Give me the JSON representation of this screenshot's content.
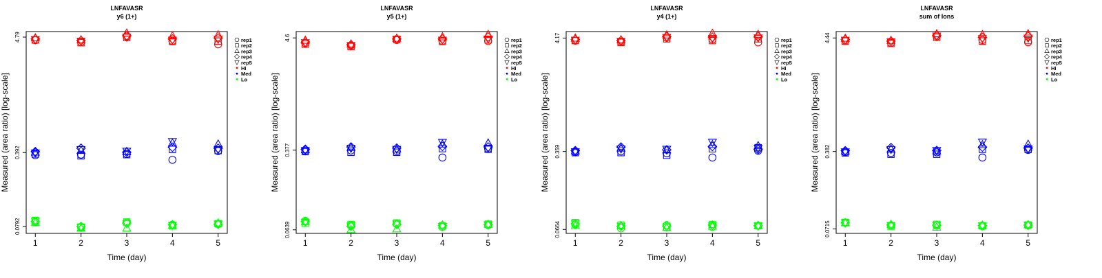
{
  "colors": {
    "Hi": "#ff0000",
    "Med": "#0000ff",
    "Lo": "#00ff00",
    "axis": "#000000"
  },
  "legend": {
    "reps": [
      {
        "label": "rep1",
        "shape": "circle"
      },
      {
        "label": "rep2",
        "shape": "square"
      },
      {
        "label": "rep3",
        "shape": "triangle-up"
      },
      {
        "label": "rep4",
        "shape": "diamond"
      },
      {
        "label": "rep5",
        "shape": "triangle-down"
      }
    ],
    "levels": [
      {
        "label": "Hi",
        "color": "#ff0000"
      },
      {
        "label": "Med",
        "color": "#0000ff"
      },
      {
        "label": "Lo",
        "color": "#00ff00"
      }
    ],
    "placement": "right"
  },
  "chart_data": [
    {
      "type": "scatter",
      "title": "LNFAVASR",
      "subtitle": "y6 (1+)",
      "xlabel": "Time (day)",
      "ylabel": "Measured (area ratio) [log-scale]",
      "log_y": true,
      "xlim": [
        0.8,
        5.2
      ],
      "ylim": [
        0.068,
        5.4
      ],
      "x_ticks": [
        "1",
        "2",
        "3",
        "4",
        "5"
      ],
      "y_ticks": [
        0.0792,
        0.392,
        4.79
      ],
      "grid": false,
      "series": [
        {
          "name": "Hi",
          "color": "#ff0000",
          "points": {
            "rep1": [
              4.48,
              4.3,
              4.85,
              4.4,
              4.1
            ],
            "rep2": [
              4.5,
              4.25,
              4.75,
              4.35,
              4.4
            ],
            "rep3": [
              4.7,
              4.5,
              5.2,
              4.9,
              5.0
            ],
            "rep4": [
              4.6,
              4.45,
              4.95,
              4.6,
              4.7
            ],
            "rep5": [
              4.55,
              4.4,
              4.8,
              4.5,
              4.6
            ]
          }
        },
        {
          "name": "Med",
          "color": "#0000ff",
          "points": {
            "rep1": [
              0.37,
              0.375,
              0.38,
              0.335,
              0.405
            ],
            "rep2": [
              0.38,
              0.365,
              0.375,
              0.42,
              0.41
            ],
            "rep3": [
              0.395,
              0.41,
              0.4,
              0.48,
              0.47
            ],
            "rep4": [
              0.4,
              0.43,
              0.395,
              0.44,
              0.43
            ],
            "rep5": [
              0.39,
              0.42,
              0.405,
              0.5,
              0.42
            ]
          }
        },
        {
          "name": "Lo",
          "color": "#00ff00",
          "points": {
            "rep1": [
              0.087,
              0.0785,
              0.086,
              0.082,
              0.083
            ],
            "rep2": [
              0.09,
              0.078,
              0.087,
              0.08,
              0.084
            ],
            "rep3": [
              0.086,
              0.076,
              0.076,
              0.081,
              0.085
            ],
            "rep4": [
              0.088,
              0.079,
              0.085,
              0.082,
              0.083
            ],
            "rep5": [
              0.089,
              0.078,
              0.084,
              0.0815,
              0.0835
            ]
          }
        }
      ]
    },
    {
      "type": "scatter",
      "title": "LNFAVASR",
      "subtitle": "y5 (1+)",
      "xlabel": "Time (day)",
      "ylabel": "Measured (area ratio) [log-scale]",
      "log_y": true,
      "xlim": [
        0.8,
        5.2
      ],
      "ylim": [
        0.059,
        5.3
      ],
      "x_ticks": [
        "1",
        "2",
        "3",
        "4",
        "5"
      ],
      "y_ticks": [
        0.0639,
        0.377,
        4.6
      ],
      "grid": false,
      "series": [
        {
          "name": "Hi",
          "color": "#ff0000",
          "points": {
            "rep1": [
              4.1,
              3.9,
              4.4,
              4.3,
              4.3
            ],
            "rep2": [
              4.0,
              3.8,
              4.45,
              4.25,
              4.4
            ],
            "rep3": [
              4.35,
              4.0,
              4.55,
              4.7,
              4.95
            ],
            "rep4": [
              4.2,
              3.95,
              4.5,
              4.5,
              4.7
            ],
            "rep5": [
              4.15,
              3.9,
              4.45,
              4.4,
              4.5
            ]
          }
        },
        {
          "name": "Med",
          "color": "#0000ff",
          "points": {
            "rep1": [
              0.37,
              0.375,
              0.37,
              0.32,
              0.39
            ],
            "rep2": [
              0.365,
              0.36,
              0.36,
              0.39,
              0.385
            ],
            "rep3": [
              0.38,
              0.4,
              0.385,
              0.43,
              0.44
            ],
            "rep4": [
              0.385,
              0.405,
              0.395,
              0.41,
              0.405
            ],
            "rep5": [
              0.375,
              0.395,
              0.385,
              0.45,
              0.395
            ]
          }
        },
        {
          "name": "Lo",
          "color": "#00ff00",
          "points": {
            "rep1": [
              0.078,
              0.071,
              0.073,
              0.068,
              0.071
            ],
            "rep2": [
              0.074,
              0.072,
              0.0745,
              0.07,
              0.0725
            ],
            "rep3": [
              0.076,
              0.064,
              0.065,
              0.071,
              0.072
            ],
            "rep4": [
              0.077,
              0.069,
              0.072,
              0.0705,
              0.0715
            ],
            "rep5": [
              0.076,
              0.07,
              0.073,
              0.069,
              0.0718
            ]
          }
        }
      ]
    },
    {
      "type": "scatter",
      "title": "LNFAVASR",
      "subtitle": "y4 (1+)",
      "xlabel": "Time (day)",
      "ylabel": "Measured (area ratio) [log-scale]",
      "log_y": true,
      "xlim": [
        0.8,
        5.2
      ],
      "ylim": [
        0.061,
        4.8
      ],
      "x_ticks": [
        "1",
        "2",
        "3",
        "4",
        "5"
      ],
      "y_ticks": [
        0.0664,
        0.359,
        4.17
      ],
      "grid": false,
      "series": [
        {
          "name": "Hi",
          "color": "#ff0000",
          "points": {
            "rep1": [
              3.95,
              3.85,
              4.2,
              4.05,
              3.8
            ],
            "rep2": [
              3.95,
              3.8,
              4.1,
              3.95,
              4.1
            ],
            "rep3": [
              4.15,
              4.0,
              4.45,
              4.6,
              4.5
            ],
            "rep4": [
              4.05,
              3.95,
              4.3,
              4.25,
              4.3
            ],
            "rep5": [
              4.0,
              3.9,
              4.25,
              4.15,
              4.2
            ]
          }
        },
        {
          "name": "Med",
          "color": "#0000ff",
          "points": {
            "rep1": [
              0.355,
              0.36,
              0.345,
              0.315,
              0.365
            ],
            "rep2": [
              0.35,
              0.35,
              0.33,
              0.38,
              0.39
            ],
            "rep3": [
              0.362,
              0.385,
              0.37,
              0.415,
              0.405
            ],
            "rep4": [
              0.365,
              0.395,
              0.372,
              0.4,
              0.375
            ],
            "rep5": [
              0.358,
              0.38,
              0.378,
              0.44,
              0.385
            ]
          }
        },
        {
          "name": "Lo",
          "color": "#00ff00",
          "points": {
            "rep1": [
              0.074,
              0.068,
              0.073,
              0.07,
              0.072
            ],
            "rep2": [
              0.077,
              0.073,
              0.07,
              0.074,
              0.072
            ],
            "rep3": [
              0.072,
              0.072,
              0.069,
              0.071,
              0.0718
            ],
            "rep4": [
              0.075,
              0.071,
              0.0715,
              0.073,
              0.0722
            ],
            "rep5": [
              0.076,
              0.0715,
              0.0705,
              0.072,
              0.072
            ]
          }
        }
      ]
    },
    {
      "type": "scatter",
      "title": "LNFAVASR",
      "subtitle": "sum of Ions",
      "xlabel": "Time (day)",
      "ylabel": "Measured (area ratio) [log-scale]",
      "log_y": true,
      "xlim": [
        0.8,
        5.2
      ],
      "ylim": [
        0.065,
        5.1
      ],
      "x_ticks": [
        "1",
        "2",
        "3",
        "4",
        "5"
      ],
      "y_ticks": [
        0.0715,
        0.382,
        4.44
      ],
      "grid": false,
      "series": [
        {
          "name": "Hi",
          "color": "#ff0000",
          "points": {
            "rep1": [
              4.2,
              4.0,
              4.6,
              4.25,
              4.05
            ],
            "rep2": [
              4.15,
              3.95,
              4.5,
              4.15,
              4.2
            ],
            "rep3": [
              4.4,
              4.2,
              4.85,
              4.75,
              4.85
            ],
            "rep4": [
              4.3,
              4.15,
              4.7,
              4.5,
              4.6
            ],
            "rep5": [
              4.25,
              4.1,
              4.65,
              4.4,
              4.45
            ]
          }
        },
        {
          "name": "Med",
          "color": "#0000ff",
          "points": {
            "rep1": [
              0.375,
              0.37,
              0.375,
              0.335,
              0.395
            ],
            "rep2": [
              0.37,
              0.36,
              0.36,
              0.4,
              0.4
            ],
            "rep3": [
              0.385,
              0.4,
              0.385,
              0.44,
              0.445
            ],
            "rep4": [
              0.388,
              0.415,
              0.39,
              0.42,
              0.41
            ],
            "rep5": [
              0.38,
              0.4,
              0.392,
              0.47,
              0.405
            ]
          }
        },
        {
          "name": "Lo",
          "color": "#00ff00",
          "points": {
            "rep1": [
              0.082,
              0.077,
              0.077,
              0.076,
              0.0775
            ],
            "rep2": [
              0.0825,
              0.076,
              0.079,
              0.0765,
              0.078
            ],
            "rep3": [
              0.0815,
              0.079,
              0.074,
              0.0775,
              0.0782
            ],
            "rep4": [
              0.0818,
              0.078,
              0.0775,
              0.077,
              0.0778
            ],
            "rep5": [
              0.0822,
              0.0775,
              0.078,
              0.0768,
              0.0779
            ]
          }
        }
      ]
    }
  ]
}
